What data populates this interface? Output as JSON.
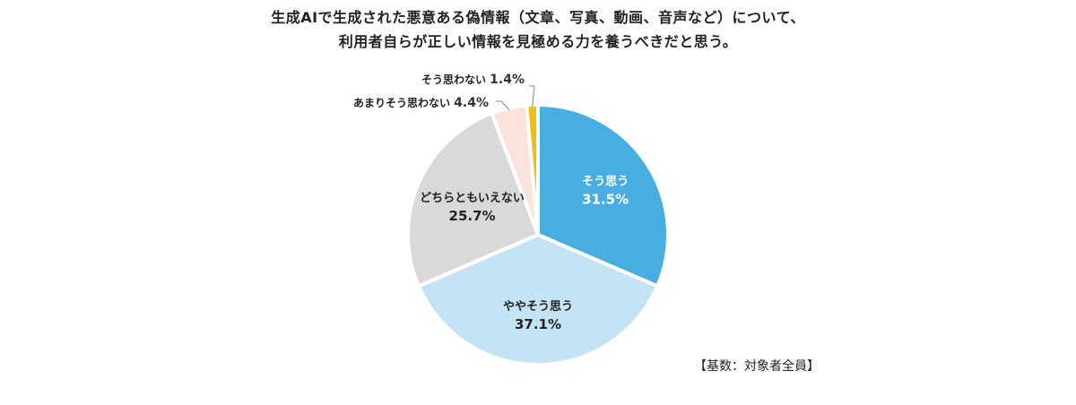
{
  "chart_data": {
    "type": "pie",
    "title_lines": [
      "生成AIで生成された悪意ある偽情報（文章、写真、動画、音声など）について、",
      "利用者自らが正しい情報を見極める力を養うべきだと思う。"
    ],
    "slices": [
      {
        "label": "そう思う",
        "value": 31.5,
        "display": "31.5%",
        "color": "#48aedf",
        "label_color": "#ffffff",
        "label_position": "inside"
      },
      {
        "label": "ややそう思う",
        "value": 37.1,
        "display": "37.1%",
        "color": "#c4e4f5",
        "label_color": "#222222",
        "label_position": "inside"
      },
      {
        "label": "どちらともいえない",
        "value": 25.7,
        "display": "25.7%",
        "color": "#d9d9d9",
        "label_color": "#222222",
        "label_position": "inside"
      },
      {
        "label": "あまりそう思わない",
        "value": 4.4,
        "display": "4.4%",
        "color": "#fbe3dc",
        "label_color": "#222222",
        "label_position": "outside"
      },
      {
        "label": "そう思わない",
        "value": 1.4,
        "display": "1.4%",
        "color": "#f7b917",
        "label_color": "#222222",
        "label_position": "outside"
      }
    ],
    "start_angle": "12 o'clock",
    "direction": "clockwise",
    "note": "【基数：対象者全員】"
  }
}
